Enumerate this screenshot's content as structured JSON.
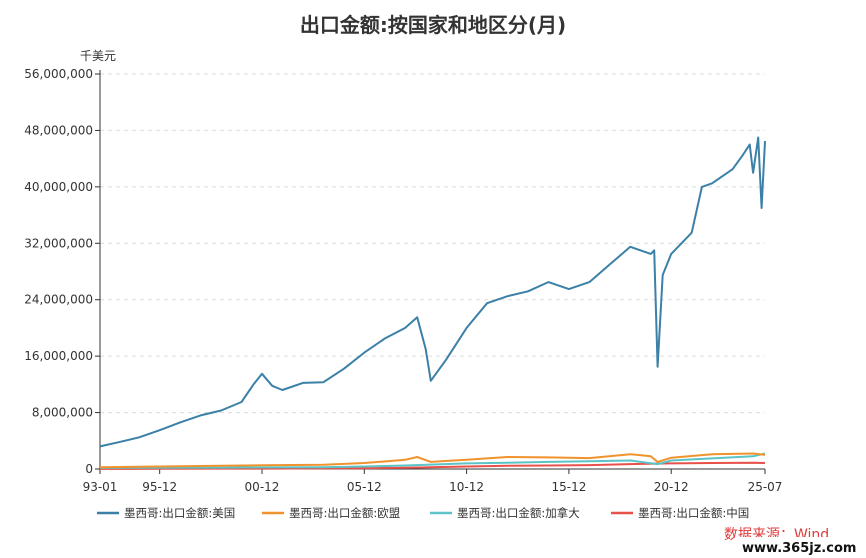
{
  "chart_data": {
    "type": "line",
    "title": "出口金额:按国家和地区分(月)",
    "y_unit": "千美元",
    "ylim": [
      0,
      56000000
    ],
    "y_ticks": [
      "56,000,000",
      "48,000,000",
      "40,000,000",
      "32,000,000",
      "24,000,000",
      "16,000,000",
      "8,000,000",
      "0"
    ],
    "x_ticks": [
      "93-01",
      "95-12",
      "00-12",
      "05-12",
      "10-12",
      "15-12",
      "20-12",
      "25-07"
    ],
    "x_range": [
      "1993-01",
      "2025-07"
    ],
    "grid": "horizontal-dashed",
    "legend_position": "bottom",
    "source": "数据来源：Wind",
    "watermark": "www.365jz.com",
    "series": [
      {
        "name": "墨西哥:出口金额:美国",
        "color": "#3b80a6",
        "points": [
          [
            "1993-01",
            3200000
          ],
          [
            "1993-12",
            3800000
          ],
          [
            "1994-12",
            4500000
          ],
          [
            "1995-12",
            5500000
          ],
          [
            "1996-12",
            6600000
          ],
          [
            "1997-12",
            7600000
          ],
          [
            "1998-12",
            8300000
          ],
          [
            "1999-12",
            9500000
          ],
          [
            "2000-07",
            12000000
          ],
          [
            "2000-12",
            13500000
          ],
          [
            "2001-06",
            11800000
          ],
          [
            "2001-12",
            11200000
          ],
          [
            "2002-12",
            12200000
          ],
          [
            "2003-12",
            12300000
          ],
          [
            "2004-12",
            14200000
          ],
          [
            "2005-12",
            16500000
          ],
          [
            "2006-12",
            18500000
          ],
          [
            "2007-12",
            20000000
          ],
          [
            "2008-07",
            21500000
          ],
          [
            "2008-12",
            17000000
          ],
          [
            "2009-03",
            12500000
          ],
          [
            "2009-12",
            15500000
          ],
          [
            "2010-12",
            20000000
          ],
          [
            "2011-12",
            23500000
          ],
          [
            "2012-12",
            24500000
          ],
          [
            "2013-12",
            25200000
          ],
          [
            "2014-12",
            26500000
          ],
          [
            "2015-12",
            25500000
          ],
          [
            "2016-12",
            26500000
          ],
          [
            "2017-12",
            29000000
          ],
          [
            "2018-12",
            31500000
          ],
          [
            "2019-12",
            30500000
          ],
          [
            "2020-02",
            31000000
          ],
          [
            "2020-04",
            14500000
          ],
          [
            "2020-07",
            27500000
          ],
          [
            "2020-12",
            30500000
          ],
          [
            "2021-12",
            33500000
          ],
          [
            "2022-06",
            40000000
          ],
          [
            "2022-12",
            40500000
          ],
          [
            "2023-12",
            42500000
          ],
          [
            "2024-06",
            44500000
          ],
          [
            "2024-10",
            46000000
          ],
          [
            "2024-12",
            42000000
          ],
          [
            "2025-03",
            47000000
          ],
          [
            "2025-05",
            37000000
          ],
          [
            "2025-07",
            46500000
          ]
        ]
      },
      {
        "name": "墨西哥:出口金额:欧盟",
        "color": "#f0932d",
        "points": [
          [
            "1993-01",
            250000
          ],
          [
            "1995-12",
            350000
          ],
          [
            "1998-12",
            450000
          ],
          [
            "2000-12",
            520000
          ],
          [
            "2003-12",
            600000
          ],
          [
            "2005-12",
            850000
          ],
          [
            "2007-12",
            1300000
          ],
          [
            "2008-07",
            1700000
          ],
          [
            "2009-03",
            1000000
          ],
          [
            "2010-12",
            1300000
          ],
          [
            "2012-12",
            1700000
          ],
          [
            "2014-12",
            1650000
          ],
          [
            "2016-12",
            1550000
          ],
          [
            "2018-12",
            2100000
          ],
          [
            "2019-12",
            1800000
          ],
          [
            "2020-04",
            1000000
          ],
          [
            "2020-12",
            1600000
          ],
          [
            "2022-12",
            2100000
          ],
          [
            "2024-12",
            2200000
          ],
          [
            "2025-07",
            2000000
          ]
        ]
      },
      {
        "name": "墨西哥:出口金额:加拿大",
        "color": "#5cc3c7",
        "points": [
          [
            "1993-01",
            150000
          ],
          [
            "1995-12",
            180000
          ],
          [
            "1998-12",
            200000
          ],
          [
            "2000-12",
            230000
          ],
          [
            "2003-12",
            260000
          ],
          [
            "2005-12",
            350000
          ],
          [
            "2007-12",
            500000
          ],
          [
            "2010-12",
            800000
          ],
          [
            "2012-12",
            900000
          ],
          [
            "2014-12",
            1000000
          ],
          [
            "2016-12",
            1100000
          ],
          [
            "2018-12",
            1200000
          ],
          [
            "2020-04",
            700000
          ],
          [
            "2020-12",
            1200000
          ],
          [
            "2022-12",
            1500000
          ],
          [
            "2024-12",
            1800000
          ],
          [
            "2025-07",
            2200000
          ]
        ]
      },
      {
        "name": "墨西哥:出口金额:中国",
        "color": "#e8504a",
        "points": [
          [
            "1993-01",
            20000
          ],
          [
            "1995-12",
            30000
          ],
          [
            "1998-12",
            50000
          ],
          [
            "2000-12",
            60000
          ],
          [
            "2003-12",
            90000
          ],
          [
            "2005-12",
            120000
          ],
          [
            "2007-12",
            180000
          ],
          [
            "2010-12",
            350000
          ],
          [
            "2012-12",
            450000
          ],
          [
            "2014-12",
            500000
          ],
          [
            "2016-12",
            550000
          ],
          [
            "2018-12",
            700000
          ],
          [
            "2020-12",
            800000
          ],
          [
            "2022-12",
            850000
          ],
          [
            "2024-12",
            900000
          ],
          [
            "2025-07",
            850000
          ]
        ]
      }
    ]
  }
}
